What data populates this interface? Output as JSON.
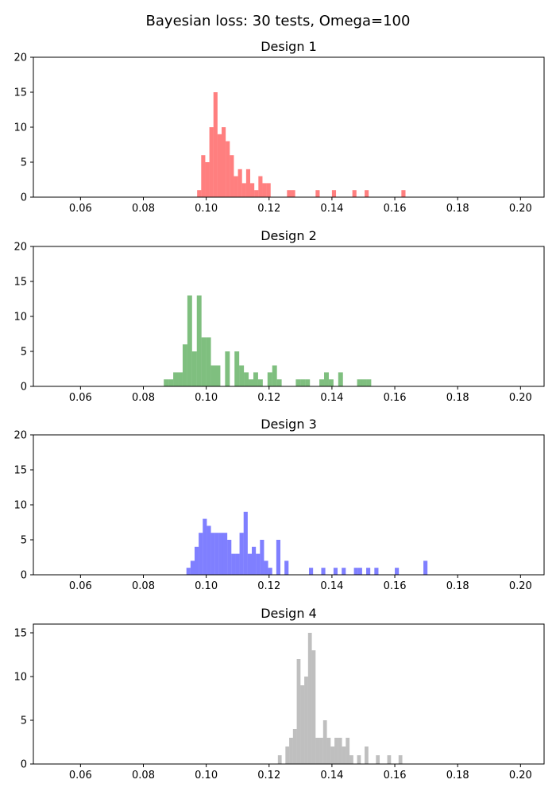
{
  "suptitle": "Bayesian loss: 30 tests, Omega=100",
  "chart_data": [
    {
      "type": "histogram",
      "title": "Design 1",
      "color": "#ff0000",
      "alpha": 0.5,
      "xlim": [
        0.045,
        0.2075
      ],
      "ylim": [
        0,
        20
      ],
      "xticks": [
        0.06,
        0.08,
        0.1,
        0.12,
        0.14,
        0.16,
        0.18,
        0.2
      ],
      "xtick_labels": [
        "0.06",
        "0.08",
        "0.10",
        "0.12",
        "0.14",
        "0.16",
        "0.18",
        "0.20"
      ],
      "yticks": [
        0,
        5,
        10,
        15,
        20
      ],
      "ytick_labels": [
        "0",
        "5",
        "10",
        "15",
        "20"
      ],
      "bin_width": 0.0013,
      "bins": [
        [
          0.0971,
          1
        ],
        [
          0.0984,
          6
        ],
        [
          0.0997,
          5
        ],
        [
          0.101,
          10
        ],
        [
          0.1023,
          15
        ],
        [
          0.1036,
          9
        ],
        [
          0.1049,
          10
        ],
        [
          0.1062,
          8
        ],
        [
          0.1075,
          6
        ],
        [
          0.1088,
          3
        ],
        [
          0.1101,
          4
        ],
        [
          0.1114,
          2
        ],
        [
          0.1127,
          4
        ],
        [
          0.114,
          2
        ],
        [
          0.1153,
          1
        ],
        [
          0.1166,
          3
        ],
        [
          0.1179,
          2
        ],
        [
          0.1192,
          2
        ],
        [
          0.1257,
          1
        ],
        [
          0.127,
          1
        ],
        [
          0.1348,
          1
        ],
        [
          0.14,
          1
        ],
        [
          0.1465,
          1
        ],
        [
          0.1504,
          1
        ],
        [
          0.1621,
          1
        ]
      ]
    },
    {
      "type": "histogram",
      "title": "Design 2",
      "color": "#008000",
      "alpha": 0.5,
      "xlim": [
        0.045,
        0.2075
      ],
      "ylim": [
        0,
        20
      ],
      "xticks": [
        0.06,
        0.08,
        0.1,
        0.12,
        0.14,
        0.16,
        0.18,
        0.2
      ],
      "xtick_labels": [
        "0.06",
        "0.08",
        "0.10",
        "0.12",
        "0.14",
        "0.16",
        "0.18",
        "0.20"
      ],
      "yticks": [
        0,
        5,
        10,
        15,
        20
      ],
      "ytick_labels": [
        "0",
        "5",
        "10",
        "15",
        "20"
      ],
      "bin_width": 0.0015,
      "bins": [
        [
          0.0865,
          1
        ],
        [
          0.088,
          1
        ],
        [
          0.0895,
          2
        ],
        [
          0.091,
          2
        ],
        [
          0.0925,
          6
        ],
        [
          0.094,
          13
        ],
        [
          0.0955,
          5
        ],
        [
          0.097,
          13
        ],
        [
          0.0985,
          7
        ],
        [
          0.1,
          7
        ],
        [
          0.1015,
          3
        ],
        [
          0.103,
          3
        ],
        [
          0.106,
          5
        ],
        [
          0.109,
          5
        ],
        [
          0.1105,
          3
        ],
        [
          0.112,
          2
        ],
        [
          0.1135,
          1
        ],
        [
          0.115,
          2
        ],
        [
          0.1165,
          1
        ],
        [
          0.1195,
          2
        ],
        [
          0.121,
          3
        ],
        [
          0.1225,
          1
        ],
        [
          0.1285,
          1
        ],
        [
          0.13,
          1
        ],
        [
          0.1315,
          1
        ],
        [
          0.136,
          1
        ],
        [
          0.1375,
          2
        ],
        [
          0.139,
          1
        ],
        [
          0.142,
          2
        ],
        [
          0.148,
          1
        ],
        [
          0.1495,
          1
        ],
        [
          0.151,
          1
        ]
      ]
    },
    {
      "type": "histogram",
      "title": "Design 3",
      "color": "#0000ff",
      "alpha": 0.5,
      "xlim": [
        0.045,
        0.2075
      ],
      "ylim": [
        0,
        20
      ],
      "xticks": [
        0.06,
        0.08,
        0.1,
        0.12,
        0.14,
        0.16,
        0.18,
        0.2
      ],
      "xtick_labels": [
        "0.06",
        "0.08",
        "0.10",
        "0.12",
        "0.14",
        "0.16",
        "0.18",
        "0.20"
      ],
      "yticks": [
        0,
        5,
        10,
        15,
        20
      ],
      "ytick_labels": [
        "0",
        "5",
        "10",
        "15",
        "20"
      ],
      "bin_width": 0.0013,
      "bins": [
        [
          0.0937,
          1
        ],
        [
          0.095,
          2
        ],
        [
          0.0963,
          4
        ],
        [
          0.0976,
          6
        ],
        [
          0.0989,
          8
        ],
        [
          0.1002,
          7
        ],
        [
          0.1015,
          6
        ],
        [
          0.1028,
          6
        ],
        [
          0.1041,
          6
        ],
        [
          0.1054,
          6
        ],
        [
          0.1067,
          5
        ],
        [
          0.108,
          3
        ],
        [
          0.1093,
          3
        ],
        [
          0.1106,
          6
        ],
        [
          0.1119,
          9
        ],
        [
          0.1132,
          3
        ],
        [
          0.1145,
          4
        ],
        [
          0.1158,
          3
        ],
        [
          0.1171,
          5
        ],
        [
          0.1184,
          2
        ],
        [
          0.1197,
          1
        ],
        [
          0.1223,
          5
        ],
        [
          0.1249,
          2
        ],
        [
          0.1327,
          1
        ],
        [
          0.1366,
          1
        ],
        [
          0.1405,
          1
        ],
        [
          0.1431,
          1
        ],
        [
          0.147,
          1
        ],
        [
          0.1483,
          1
        ],
        [
          0.1509,
          1
        ],
        [
          0.1535,
          1
        ],
        [
          0.16,
          1
        ],
        [
          0.1691,
          2
        ]
      ]
    },
    {
      "type": "histogram",
      "title": "Design 4",
      "color": "#808080",
      "alpha": 0.5,
      "xlim": [
        0.045,
        0.2075
      ],
      "ylim": [
        0,
        16
      ],
      "xticks": [
        0.06,
        0.08,
        0.1,
        0.12,
        0.14,
        0.16,
        0.18,
        0.2
      ],
      "xtick_labels": [
        "0.06",
        "0.08",
        "0.10",
        "0.12",
        "0.14",
        "0.16",
        "0.18",
        "0.20"
      ],
      "yticks": [
        0,
        5,
        10,
        15
      ],
      "ytick_labels": [
        "0",
        "5",
        "10",
        "15"
      ],
      "bin_width": 0.0012,
      "bins": [
        [
          0.1228,
          1
        ],
        [
          0.1252,
          2
        ],
        [
          0.1264,
          3
        ],
        [
          0.1276,
          4
        ],
        [
          0.1288,
          12
        ],
        [
          0.13,
          9
        ],
        [
          0.1312,
          10
        ],
        [
          0.1324,
          15
        ],
        [
          0.1336,
          13
        ],
        [
          0.1348,
          3
        ],
        [
          0.136,
          3
        ],
        [
          0.1372,
          5
        ],
        [
          0.1384,
          3
        ],
        [
          0.1396,
          2
        ],
        [
          0.1408,
          3
        ],
        [
          0.142,
          3
        ],
        [
          0.1432,
          2
        ],
        [
          0.1444,
          3
        ],
        [
          0.1456,
          1
        ],
        [
          0.148,
          1
        ],
        [
          0.1504,
          2
        ],
        [
          0.154,
          1
        ],
        [
          0.1576,
          1
        ],
        [
          0.1612,
          1
        ]
      ]
    }
  ]
}
